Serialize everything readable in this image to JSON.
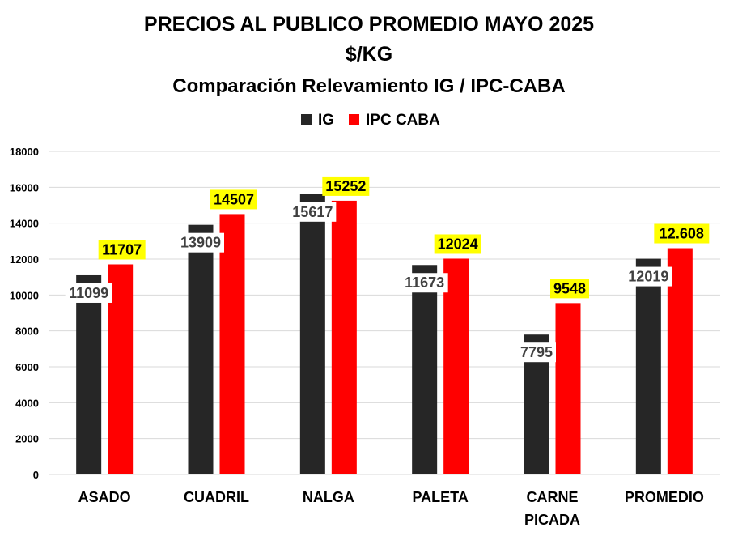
{
  "chart_data": {
    "type": "bar",
    "title_lines": [
      "PRECIOS AL PUBLICO PROMEDIO MAYO 2025",
      "$/KG",
      "Comparación Relevamiento IG / IPC-CABA"
    ],
    "categories": [
      [
        "ASADO"
      ],
      [
        "CUADRIL"
      ],
      [
        "NALGA"
      ],
      [
        "PALETA"
      ],
      [
        "CARNE",
        "PICADA"
      ],
      [
        "PROMEDIO"
      ]
    ],
    "series": [
      {
        "name": "IG",
        "color": "#262626",
        "label_bg": "#ffffff",
        "values": [
          11099,
          13909,
          15617,
          11673,
          7795,
          12019
        ],
        "labels": [
          "11099",
          "13909",
          "15617",
          "11673",
          "7795",
          "12019"
        ]
      },
      {
        "name": "IPC CABA",
        "color": "#ff0000",
        "label_bg": "#ffff00",
        "values": [
          11707,
          14507,
          15252,
          12024,
          9548,
          12608
        ],
        "labels": [
          "11707",
          "14507",
          "15252",
          "12024",
          "9548",
          "12.608"
        ]
      }
    ],
    "y_ticks": [
      "0",
      "2000",
      "4000",
      "6000",
      "8000",
      "10000",
      "12000",
      "14000",
      "16000",
      "18000"
    ],
    "ylim": [
      0,
      18000
    ],
    "grid": true,
    "legend_position": "top-center"
  }
}
